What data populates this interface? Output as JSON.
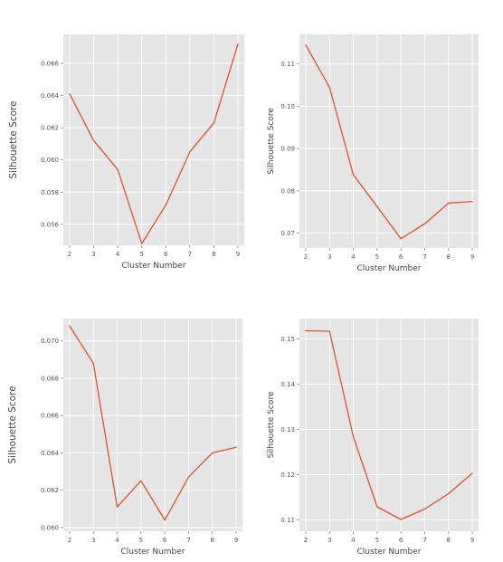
{
  "chart_data": [
    {
      "type": "line",
      "title": "",
      "xlabel": "Cluster Number",
      "ylabel": "Silhouette Score",
      "x": [
        2,
        3,
        4,
        5,
        6,
        7,
        8,
        9
      ],
      "xticks": [
        2,
        3,
        4,
        5,
        6,
        7,
        8,
        9
      ],
      "yticks": [
        0.056,
        0.058,
        0.06,
        0.062,
        0.064,
        0.066
      ],
      "ytick_labels": [
        "0.056",
        "0.058",
        "0.060",
        "0.062",
        "0.064",
        "0.066"
      ],
      "ylim": [
        0.0547,
        0.0678
      ],
      "series": [
        {
          "values": [
            0.0641,
            0.0612,
            0.0594,
            0.0548,
            0.0572,
            0.0605,
            0.0623,
            0.0672
          ]
        }
      ],
      "grid": true,
      "line_color": "#e2512d",
      "background": "#e5e5e5"
    },
    {
      "type": "line",
      "title": "",
      "xlabel": "Cluster Number",
      "ylabel": "Silhouette Score",
      "x": [
        2,
        3,
        4,
        5,
        6,
        7,
        8,
        9
      ],
      "xticks": [
        2,
        3,
        4,
        5,
        6,
        7,
        8,
        9
      ],
      "yticks": [
        0.07,
        0.08,
        0.09,
        0.1,
        0.11
      ],
      "ytick_labels": [
        "0.07",
        "0.08",
        "0.09",
        "0.10",
        "0.11"
      ],
      "ylim": [
        0.0665,
        0.117
      ],
      "series": [
        {
          "values": [
            0.1145,
            0.1045,
            0.0838,
            0.0763,
            0.0687,
            0.0722,
            0.0771,
            0.0775
          ]
        }
      ],
      "grid": true,
      "line_color": "#e2512d",
      "background": "#e5e5e5"
    },
    {
      "type": "line",
      "title": "",
      "xlabel": "Cluster Number",
      "ylabel": "Silhouette Score",
      "x": [
        2,
        3,
        4,
        5,
        6,
        7,
        8,
        9
      ],
      "xticks": [
        2,
        3,
        4,
        5,
        6,
        7,
        8,
        9
      ],
      "yticks": [
        0.06,
        0.062,
        0.064,
        0.066,
        0.068,
        0.07
      ],
      "ytick_labels": [
        "0.060",
        "0.062",
        "0.064",
        "0.066",
        "0.068",
        "0.070"
      ],
      "ylim": [
        0.0598,
        0.0712
      ],
      "series": [
        {
          "values": [
            0.0708,
            0.0688,
            0.0611,
            0.0625,
            0.0604,
            0.0627,
            0.064,
            0.0643
          ]
        }
      ],
      "grid": true,
      "line_color": "#e2512d",
      "background": "#e5e5e5"
    },
    {
      "type": "line",
      "title": "",
      "xlabel": "Cluster Number",
      "ylabel": "Silhouette Score",
      "x": [
        2,
        3,
        4,
        5,
        6,
        7,
        8,
        9
      ],
      "xticks": [
        2,
        3,
        4,
        5,
        6,
        7,
        8,
        9
      ],
      "yticks": [
        0.11,
        0.12,
        0.13,
        0.14,
        0.15
      ],
      "ytick_labels": [
        "0.11",
        "0.12",
        "0.13",
        "0.14",
        "0.15"
      ],
      "ylim": [
        0.1075,
        0.1545
      ],
      "series": [
        {
          "values": [
            0.1518,
            0.1517,
            0.1284,
            0.1129,
            0.1101,
            0.1124,
            0.1158,
            0.1203
          ]
        }
      ],
      "grid": true,
      "line_color": "#e2512d",
      "background": "#e5e5e5"
    }
  ]
}
